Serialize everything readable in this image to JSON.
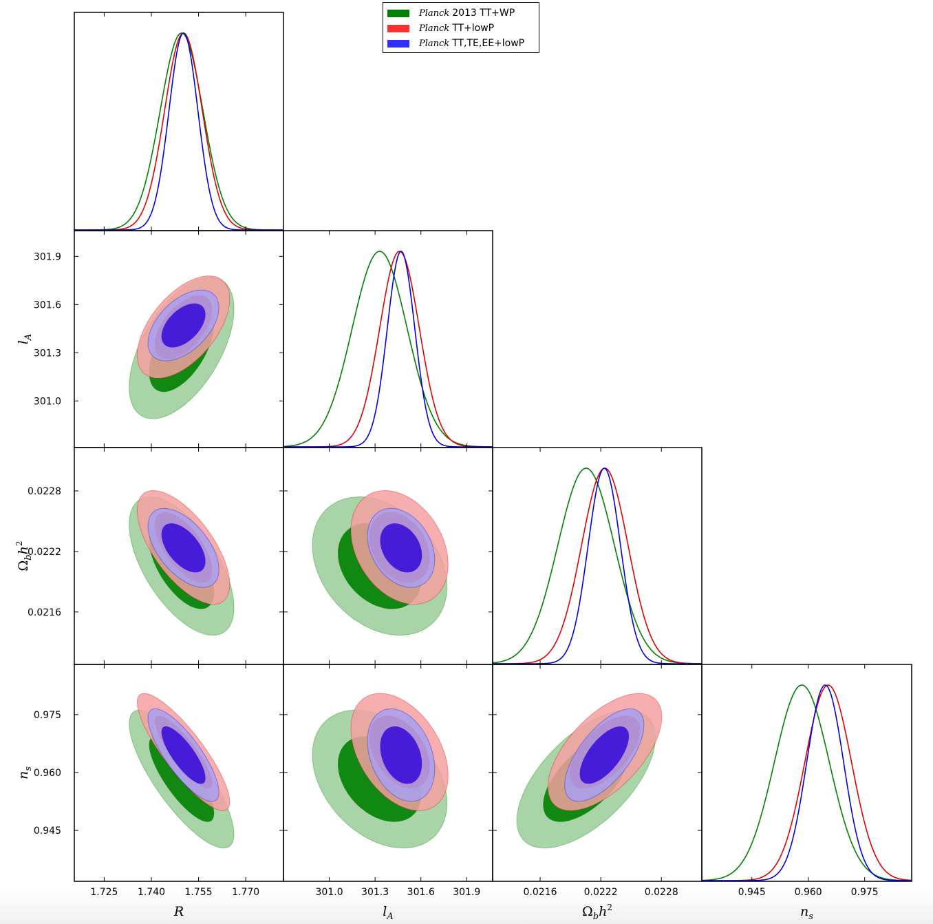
{
  "chart_data": {
    "type": "triangle-corner-plot",
    "title": "",
    "parameters": [
      {
        "key": "R",
        "label": "R",
        "ticks": [
          1.725,
          1.74,
          1.755,
          1.77
        ],
        "tick_labels": [
          "1.725",
          "1.740",
          "1.755",
          "1.770"
        ],
        "range": [
          1.7155,
          1.782
        ]
      },
      {
        "key": "lA",
        "label": "l_A",
        "ticks": [
          301.0,
          301.3,
          301.6,
          301.9
        ],
        "tick_labels": [
          "301.0",
          "301.3",
          "301.6",
          "301.9"
        ],
        "range": [
          300.7,
          302.07
        ]
      },
      {
        "key": "obh2",
        "label": "Ω_b h^2",
        "ticks": [
          0.0216,
          0.0222,
          0.0228
        ],
        "tick_labels": [
          "0.0216",
          "0.0222",
          "0.0228"
        ],
        "range": [
          0.02113,
          0.0232
        ]
      },
      {
        "key": "ns",
        "label": "n_s",
        "ticks": [
          0.945,
          0.96,
          0.975
        ],
        "tick_labels": [
          "0.945",
          "0.960",
          "0.975"
        ],
        "range": [
          0.9317,
          0.9875
        ]
      }
    ],
    "series": [
      {
        "name": "Planck 2013 TT+WP",
        "name_italic": "Planck",
        "name_rest": "2013 TT+WP",
        "color": "#008000",
        "fill_inner": "#008000",
        "fill_outer": "#99cc99",
        "mean": {
          "R": 1.7496,
          "lA": 301.33,
          "obh2": 0.022055,
          "ns": 0.9583
        },
        "sigma": {
          "R": 0.0068,
          "lA": 0.18,
          "obh2": 0.00028,
          "ns": 0.0073
        },
        "corr": {
          "R-lA": 0.55,
          "R-obh2": -0.6,
          "R-ns": -0.8,
          "lA-obh2": -0.3,
          "lA-ns": -0.35,
          "obh2-ns": 0.6
        }
      },
      {
        "name": "Planck TT+lowP",
        "name_italic": "Planck",
        "name_rest": "TT+lowP",
        "color": "#e00000",
        "fill_inner": "#e52a2a",
        "fill_outer": "#f5a0a0",
        "mean": {
          "R": 1.7502,
          "lA": 301.46,
          "obh2": 0.02224,
          "ns": 0.9653
        },
        "sigma": {
          "R": 0.006,
          "lA": 0.13,
          "obh2": 0.00023,
          "ns": 0.0062
        },
        "corr": {
          "R-lA": 0.55,
          "R-obh2": -0.65,
          "R-ns": -0.85,
          "lA-obh2": -0.3,
          "lA-ns": -0.4,
          "obh2-ns": 0.6
        }
      },
      {
        "name": "Planck TT,TE,EE+lowP",
        "name_italic": "Planck",
        "name_rest": "TT,TE,EE+lowP",
        "color": "#0000e0",
        "fill_inner": "#3a10d8",
        "fill_outer": "#a8a0f0",
        "mean": {
          "R": 1.7502,
          "lA": 301.47,
          "obh2": 0.022235,
          "ns": 0.9645
        },
        "sigma": {
          "R": 0.0046,
          "lA": 0.09,
          "obh2": 0.00016,
          "ns": 0.0049
        },
        "corr": {
          "R-lA": 0.5,
          "R-obh2": -0.55,
          "R-ns": -0.8,
          "lA-obh2": -0.3,
          "lA-ns": -0.3,
          "obh2-ns": 0.65
        }
      }
    ],
    "contour_levels": [
      "68%",
      "95%"
    ],
    "legend_position": "top-center"
  }
}
